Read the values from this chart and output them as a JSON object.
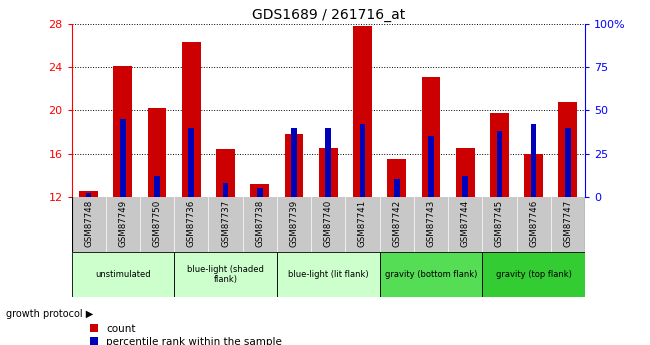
{
  "title": "GDS1689 / 261716_at",
  "samples": [
    "GSM87748",
    "GSM87749",
    "GSM87750",
    "GSM87736",
    "GSM87737",
    "GSM87738",
    "GSM87739",
    "GSM87740",
    "GSM87741",
    "GSM87742",
    "GSM87743",
    "GSM87744",
    "GSM87745",
    "GSM87746",
    "GSM87747"
  ],
  "counts": [
    12.5,
    24.1,
    20.2,
    26.3,
    16.4,
    13.2,
    17.8,
    16.5,
    27.8,
    15.5,
    23.1,
    16.5,
    19.8,
    16.0,
    20.8
  ],
  "percentile": [
    2,
    45,
    12,
    40,
    8,
    5,
    40,
    40,
    42,
    10,
    35,
    12,
    38,
    42,
    40
  ],
  "ylim": [
    12,
    28
  ],
  "y2lim": [
    0,
    100
  ],
  "yticks": [
    12,
    16,
    20,
    24,
    28
  ],
  "y2ticks": [
    0,
    25,
    50,
    75,
    100
  ],
  "bar_color_red": "#cc0000",
  "bar_color_blue": "#0000bb",
  "groups": [
    {
      "label": "unstimulated",
      "start": 0,
      "end": 2,
      "color": "#ccffcc"
    },
    {
      "label": "blue-light (shaded\nflank)",
      "start": 3,
      "end": 5,
      "color": "#ccffcc"
    },
    {
      "label": "blue-light (lit flank)",
      "start": 6,
      "end": 8,
      "color": "#ccffcc"
    },
    {
      "label": "gravity (bottom flank)",
      "start": 9,
      "end": 11,
      "color": "#55dd55"
    },
    {
      "label": "gravity (top flank)",
      "start": 12,
      "end": 14,
      "color": "#33cc33"
    }
  ],
  "sample_bg": "#c8c8c8",
  "legend_count": "count",
  "legend_percentile": "percentile rank within the sample"
}
